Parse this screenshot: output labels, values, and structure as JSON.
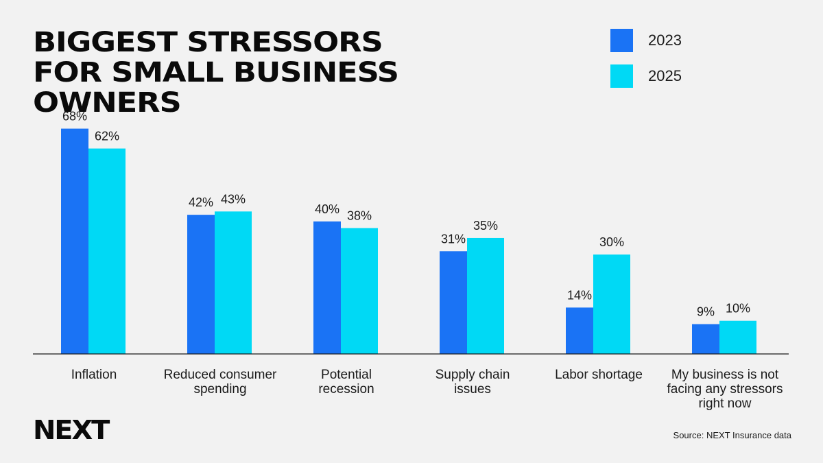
{
  "colors": {
    "series_2023": "#1a73f5",
    "series_2025": "#00d9f5",
    "background": "#f2f2f2"
  },
  "branding": {
    "logo_text": "NEXT",
    "source": "Source: NEXT Insurance data"
  },
  "chart_data": {
    "type": "bar",
    "title": "BIGGEST STRESSORS FOR SMALL BUSINESS OWNERS",
    "xlabel": "",
    "ylabel": "",
    "legend_position": "top-right",
    "grid": false,
    "ylim": [
      0,
      70
    ],
    "categories": [
      [
        "Inflation"
      ],
      [
        "Reduced consumer",
        "spending"
      ],
      [
        "Potential",
        "recession"
      ],
      [
        "Supply chain",
        "issues"
      ],
      [
        "Labor shortage"
      ],
      [
        "My business is not",
        "facing any stressors",
        "right now"
      ]
    ],
    "series": [
      {
        "name": "2023",
        "values": [
          68,
          42,
          40,
          31,
          14,
          9
        ],
        "labels": [
          "68%",
          "42%",
          "40%",
          "31%",
          "14%",
          "9%"
        ]
      },
      {
        "name": "2025",
        "values": [
          62,
          43,
          38,
          35,
          30,
          10
        ],
        "labels": [
          "62%",
          "43%",
          "38%",
          "35%",
          "30%",
          "10%"
        ]
      }
    ]
  }
}
